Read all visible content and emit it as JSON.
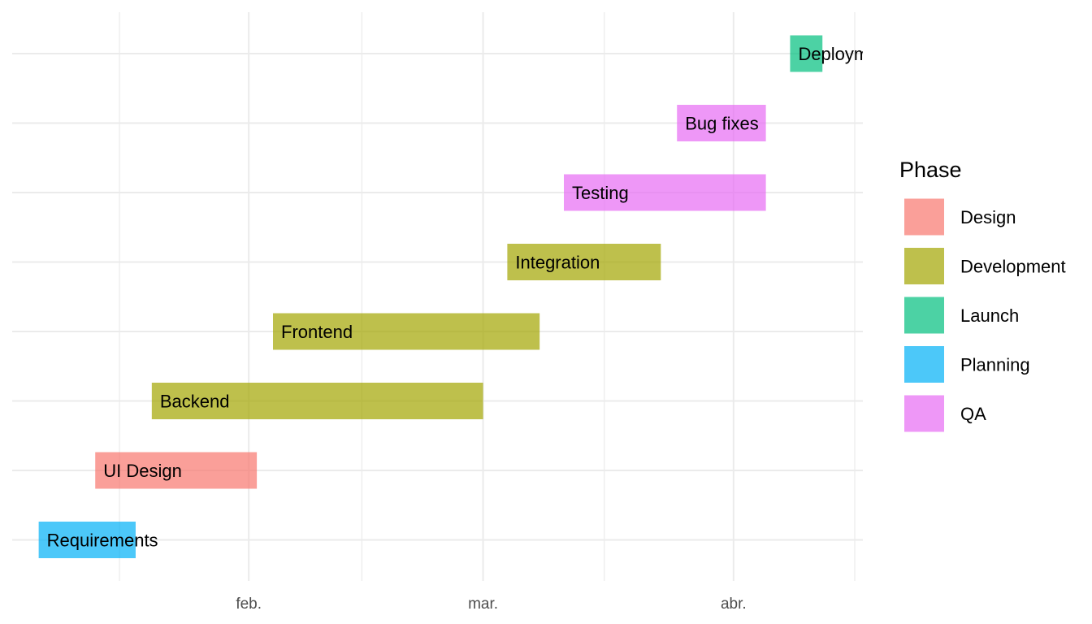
{
  "chart_data": {
    "type": "gantt",
    "xlim": [
      "2024-01-17",
      "2024-04-16"
    ],
    "x_ticks": [
      {
        "date": "2024-02-01",
        "label": "feb."
      },
      {
        "date": "2024-03-01",
        "label": "mar."
      },
      {
        "date": "2024-04-01",
        "label": "abr."
      }
    ],
    "x_minor_ticks": [
      "2024-01-16",
      "2024-02-15",
      "2024-03-16",
      "2024-04-16"
    ],
    "tasks": [
      {
        "task": "Requirements",
        "phase": "Planning",
        "start": "2024-01-06",
        "end": "2024-01-18"
      },
      {
        "task": "UI Design",
        "phase": "Design",
        "start": "2024-01-13",
        "end": "2024-02-02"
      },
      {
        "task": "Backend",
        "phase": "Development",
        "start": "2024-01-20",
        "end": "2024-03-01"
      },
      {
        "task": "Frontend",
        "phase": "Development",
        "start": "2024-02-04",
        "end": "2024-03-08"
      },
      {
        "task": "Integration",
        "phase": "Development",
        "start": "2024-03-04",
        "end": "2024-03-23"
      },
      {
        "task": "Testing",
        "phase": "QA",
        "start": "2024-03-11",
        "end": "2024-04-05"
      },
      {
        "task": "Bug fixes",
        "phase": "QA",
        "start": "2024-03-25",
        "end": "2024-04-05"
      },
      {
        "task": "Deployment",
        "phase": "Launch",
        "start": "2024-04-08",
        "end": "2024-04-12"
      }
    ],
    "legend": {
      "title": "Phase",
      "position": "right",
      "items": [
        {
          "label": "Design",
          "color": "#F8766D"
        },
        {
          "label": "Development",
          "color": "#A3A500"
        },
        {
          "label": "Launch",
          "color": "#00BF7D"
        },
        {
          "label": "Planning",
          "color": "#00B0F6"
        },
        {
          "label": "QA",
          "color": "#E76BF3"
        }
      ]
    },
    "grid": true,
    "y_axis_labels_shown": false
  }
}
